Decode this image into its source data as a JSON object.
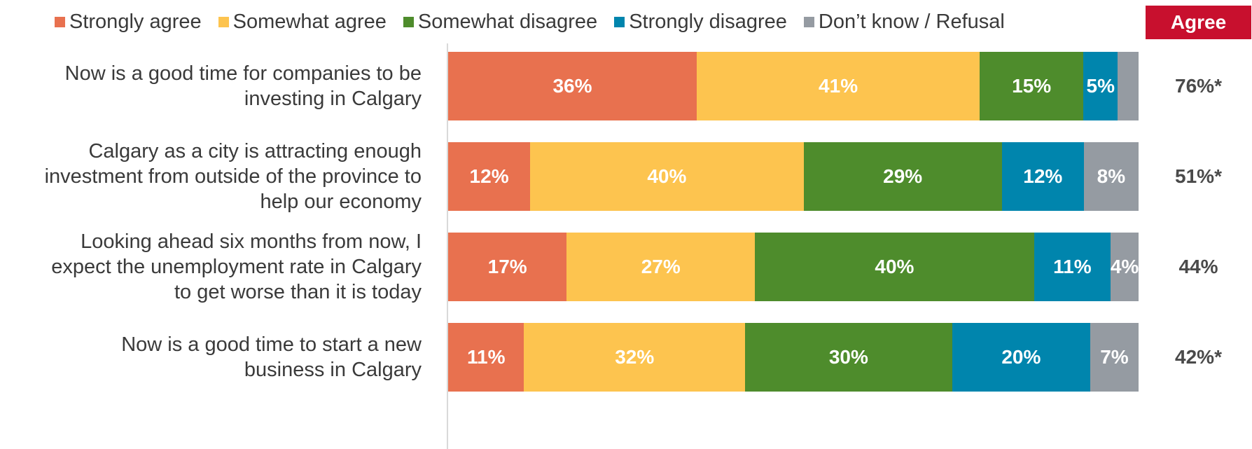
{
  "chart_data": {
    "type": "bar",
    "orientation": "horizontal",
    "stacked": true,
    "legend_position": "top",
    "series": [
      {
        "name": "Strongly agree",
        "color": "#e8714f"
      },
      {
        "name": "Somewhat agree",
        "color": "#fdc44f"
      },
      {
        "name": "Somewhat disagree",
        "color": "#4e8c2c"
      },
      {
        "name": "Strongly disagree",
        "color": "#0085ad"
      },
      {
        "name": "Don’t know / Refusal",
        "color": "#959ba2"
      }
    ],
    "categories": [
      [
        "Now is a good time for companies to be",
        "investing in Calgary"
      ],
      [
        "Calgary as a city is attracting enough",
        "investment from outside of the province to",
        "help our economy"
      ],
      [
        "Looking ahead six months from now, I",
        "expect the unemployment rate in Calgary",
        "to get worse than it is today"
      ],
      [
        "Now is a good time to start a new",
        "business in Calgary"
      ]
    ],
    "values": [
      [
        36,
        41,
        15,
        5,
        3
      ],
      [
        12,
        40,
        29,
        12,
        8
      ],
      [
        17,
        27,
        40,
        11,
        4
      ],
      [
        11,
        32,
        30,
        20,
        7
      ]
    ],
    "data_labels": [
      [
        "36%",
        "41%",
        "15%",
        "5%",
        ""
      ],
      [
        "12%",
        "40%",
        "29%",
        "12%",
        "8%"
      ],
      [
        "17%",
        "27%",
        "40%",
        "11%",
        "4%"
      ],
      [
        "11%",
        "32%",
        "30%",
        "20%",
        "7%"
      ]
    ],
    "agree_header": "Agree",
    "agree_header_color": "#c8102e",
    "agree_values": [
      "76%*",
      "51%*",
      "44%",
      "42%*"
    ]
  }
}
